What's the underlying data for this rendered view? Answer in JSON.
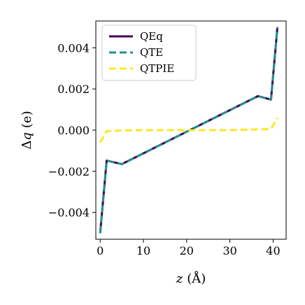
{
  "chart_data": {
    "type": "line",
    "xlabel": "z (Å)",
    "xlabel_parts": {
      "var": "z",
      "unit": "(Å)"
    },
    "ylabel": "Δq (e)",
    "ylabel_parts": {
      "delta": "Δ",
      "var": "q",
      "unit": "(e)"
    },
    "xlim": [
      -1,
      43
    ],
    "ylim": [
      -0.0053,
      0.0053
    ],
    "xticks": [
      0,
      10,
      20,
      30,
      40
    ],
    "xtick_labels": [
      "0",
      "10",
      "20",
      "30",
      "40"
    ],
    "yticks": [
      -0.004,
      -0.002,
      0.0,
      0.002,
      0.004
    ],
    "ytick_labels": [
      "−0.004",
      "−0.002",
      "0.000",
      "0.002",
      "0.004"
    ],
    "grid": false,
    "legend_position": "top-left",
    "series": [
      {
        "name": "QEq",
        "color": "#440154",
        "style": "solid",
        "x": [
          0,
          1.5,
          5,
          36.5,
          39.5,
          41
        ],
        "y": [
          -0.005,
          -0.00148,
          -0.00165,
          0.00165,
          0.00148,
          0.005
        ]
      },
      {
        "name": "QTE",
        "color": "#21918c",
        "style": "dashed",
        "x": [
          0,
          1.5,
          5,
          36.5,
          39.5,
          41
        ],
        "y": [
          -0.005,
          -0.00148,
          -0.00165,
          0.00165,
          0.00148,
          0.005
        ]
      },
      {
        "name": "QTPIE",
        "color": "#fde725",
        "style": "dashed",
        "x": [
          0,
          1.5,
          5,
          10,
          20,
          30,
          39.5,
          41
        ],
        "y": [
          -0.0006,
          -5e-05,
          -2e-05,
          0.0,
          0.0,
          0.0,
          5e-05,
          0.0006
        ]
      }
    ]
  }
}
